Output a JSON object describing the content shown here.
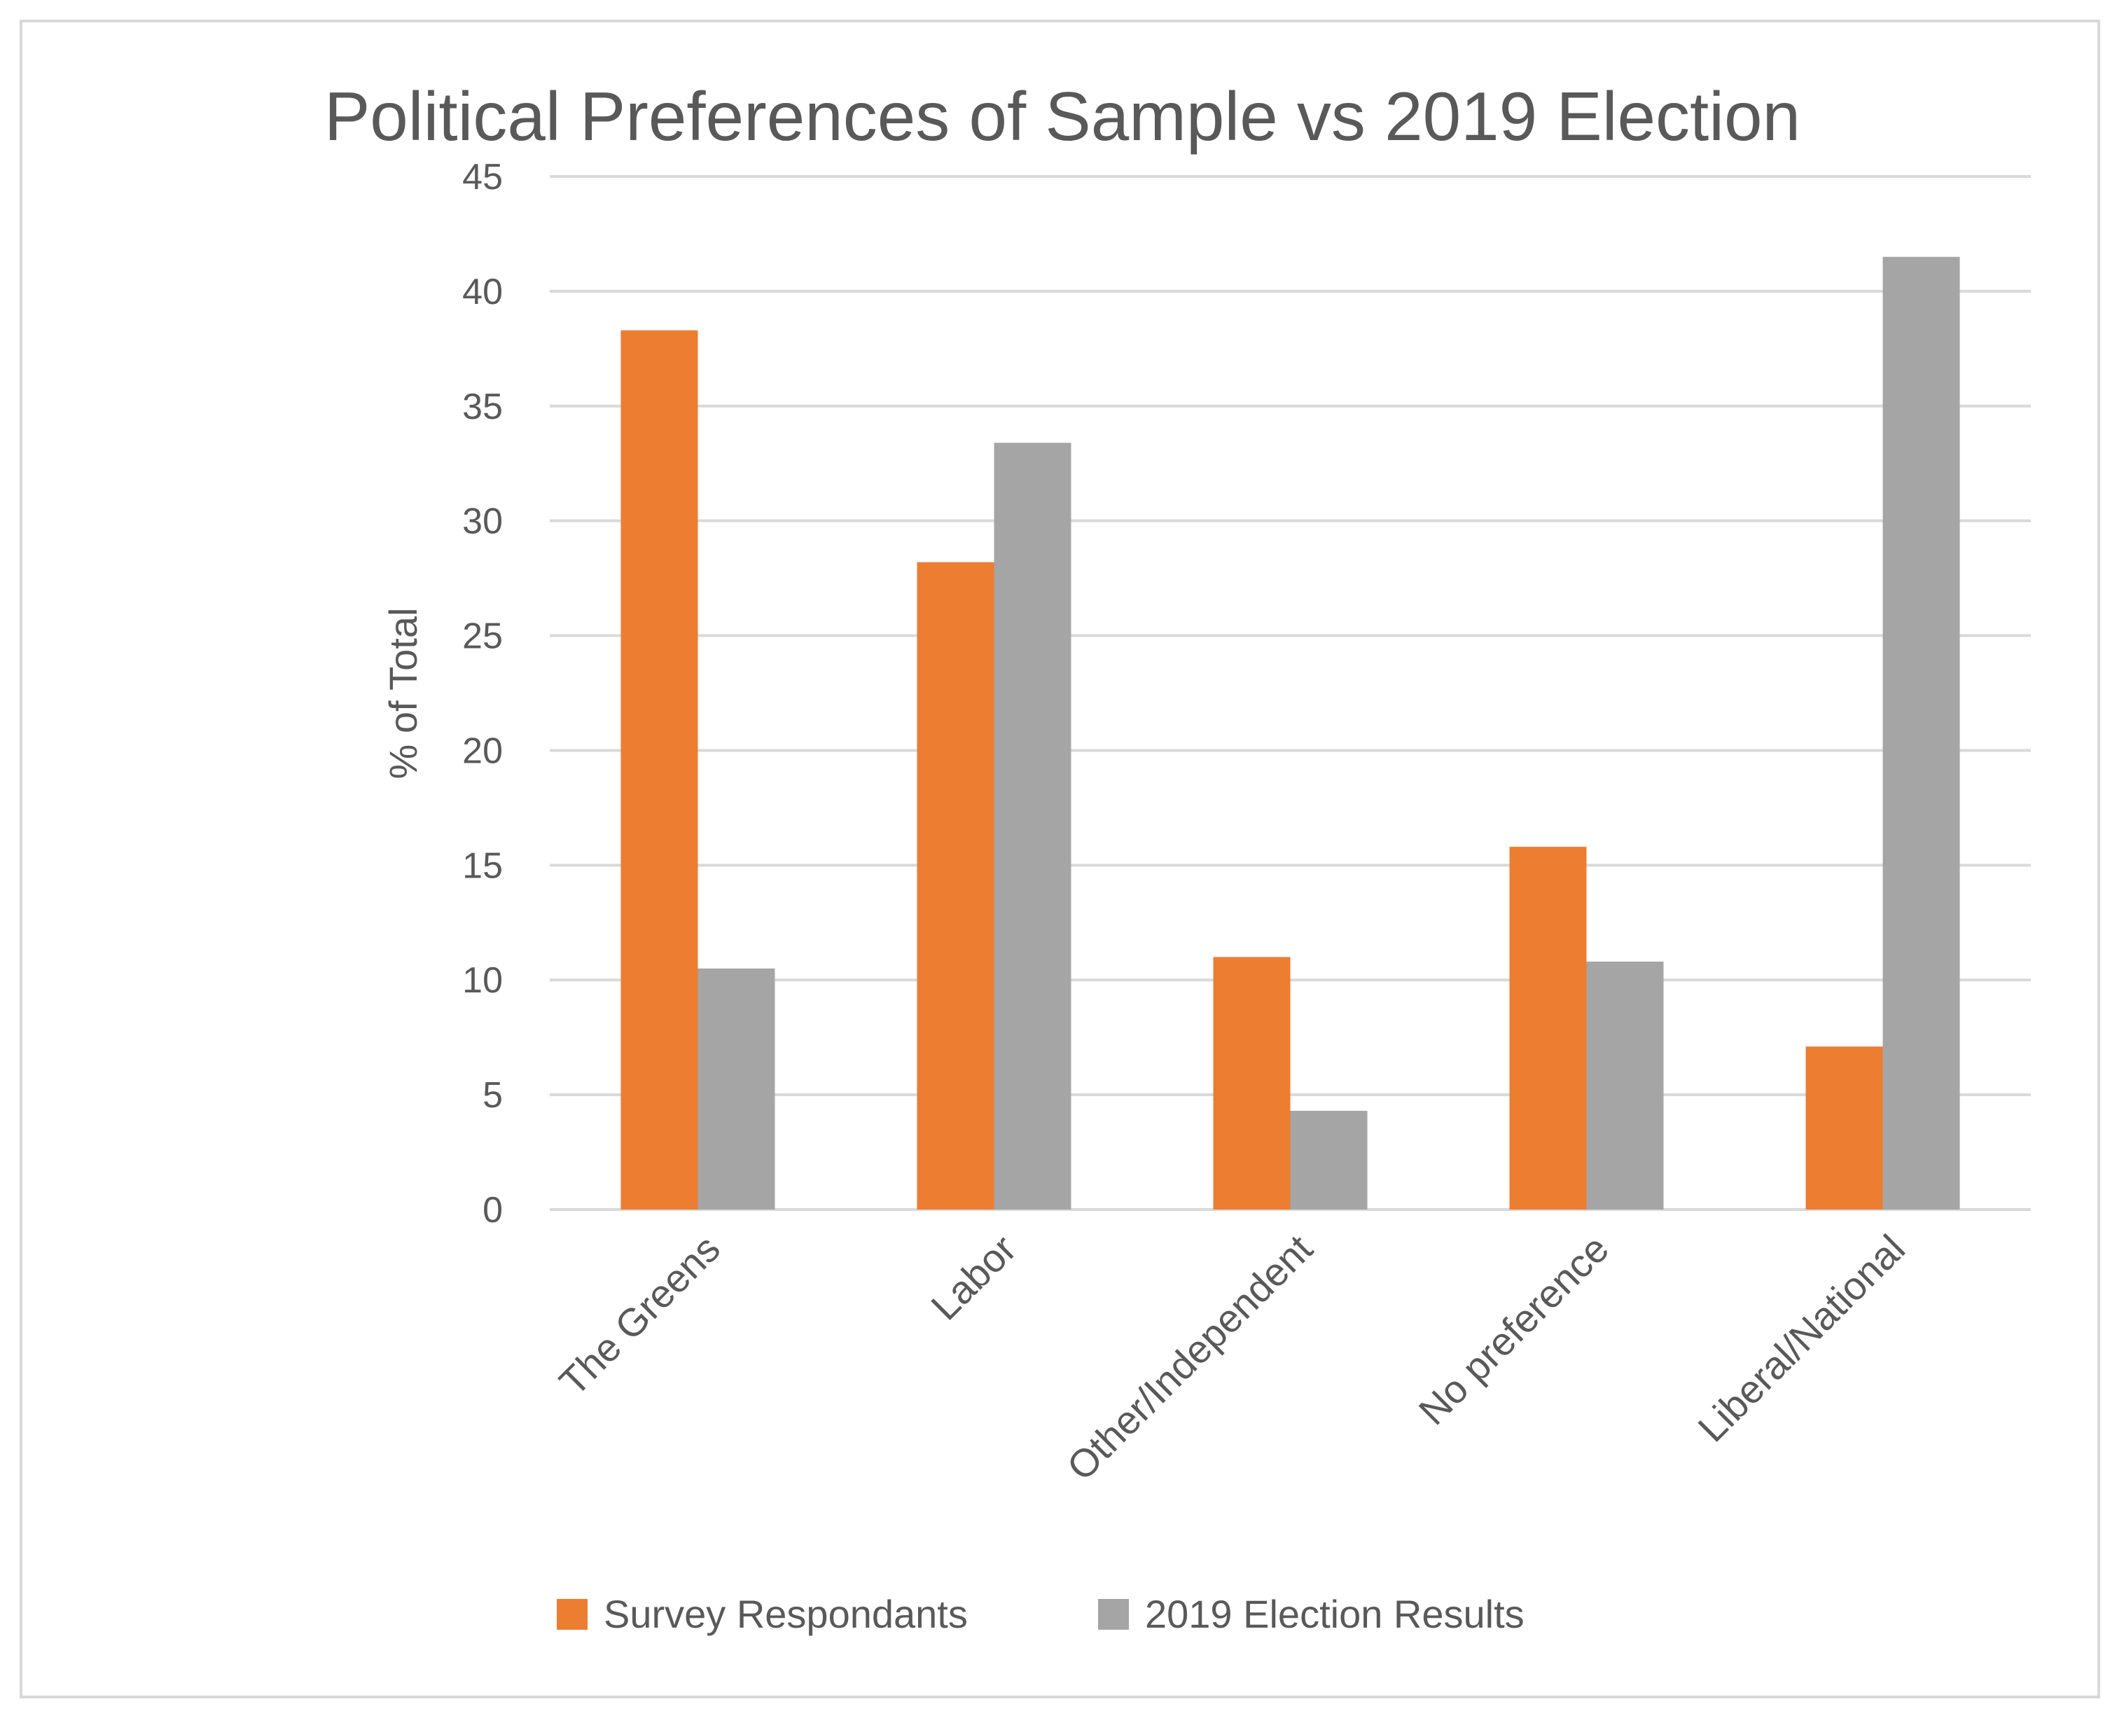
{
  "chart_data": {
    "type": "bar",
    "title": "Political Preferences of Sample vs 2019 Election",
    "xlabel": "",
    "ylabel": "% of Total",
    "ylim": [
      0,
      45
    ],
    "yticks": [
      0,
      5,
      10,
      15,
      20,
      25,
      30,
      35,
      40,
      45
    ],
    "grid": true,
    "legend_position": "bottom",
    "categories": [
      "The Greens",
      "Labor",
      "Other/Independent",
      "No preference",
      "Liberal/National"
    ],
    "series": [
      {
        "name": "Survey Respondants",
        "color": "#ed7d31",
        "values": [
          38.3,
          28.2,
          11.0,
          15.8,
          7.1
        ]
      },
      {
        "name": "2019 Election Results",
        "color": "#a5a5a5",
        "values": [
          10.5,
          33.4,
          4.3,
          10.8,
          41.5
        ]
      }
    ]
  }
}
